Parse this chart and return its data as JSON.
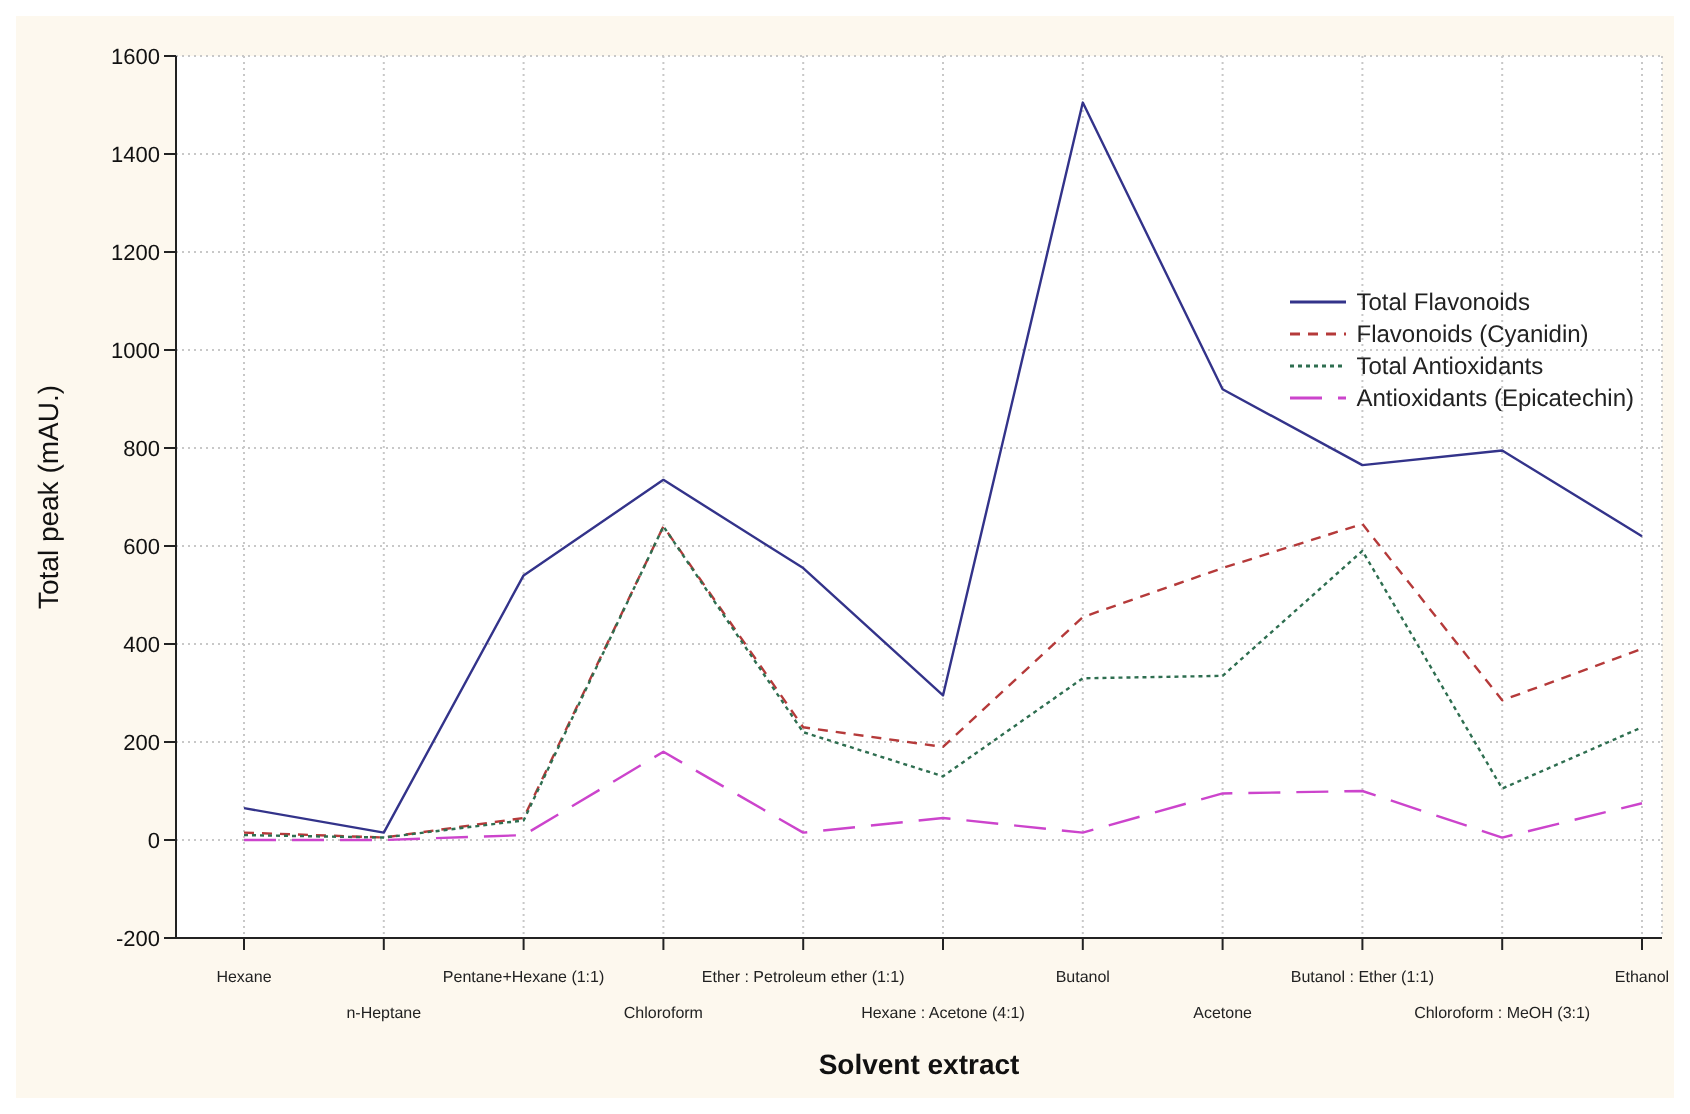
{
  "chart_data": {
    "type": "line",
    "xlabel": "Solvent extract",
    "ylabel": "Total peak (mAU.)",
    "categories": [
      "Hexane",
      "n-Heptane",
      "Pentane+Hexane (1:1)",
      "Chloroform",
      "Ether : Petroleum ether (1:1)",
      "Hexane : Acetone (4:1)",
      "Butanol",
      "Acetone",
      "Butanol : Ether (1:1)",
      "Chloroform : MeOH (3:1)",
      "Ethanol"
    ],
    "series": [
      {
        "name": "Total Flavonoids",
        "color": "#33338a",
        "line_style": "solid",
        "values": [
          65,
          15,
          540,
          735,
          555,
          295,
          1505,
          920,
          765,
          795,
          620
        ]
      },
      {
        "name": "Flavonoids (Cyanidin)",
        "color": "#b53a3a",
        "line_style": "dashed",
        "values": [
          15,
          5,
          45,
          640,
          230,
          190,
          455,
          555,
          645,
          285,
          390
        ]
      },
      {
        "name": "Total Antioxidants",
        "color": "#2e6e50",
        "line_style": "dotted",
        "values": [
          10,
          5,
          40,
          640,
          220,
          130,
          330,
          335,
          590,
          105,
          230
        ]
      },
      {
        "name": "Antioxidants (Epicatechin)",
        "color": "#cc44cc",
        "line_style": "long-dashed",
        "values": [
          0,
          0,
          10,
          180,
          15,
          45,
          15,
          95,
          100,
          5,
          75
        ]
      }
    ],
    "ylim": [
      -200,
      1600
    ],
    "yticks": [
      -200,
      0,
      200,
      400,
      600,
      800,
      1000,
      1200,
      1400,
      1600
    ],
    "grid": true,
    "legend": "top right",
    "marker": "none"
  }
}
